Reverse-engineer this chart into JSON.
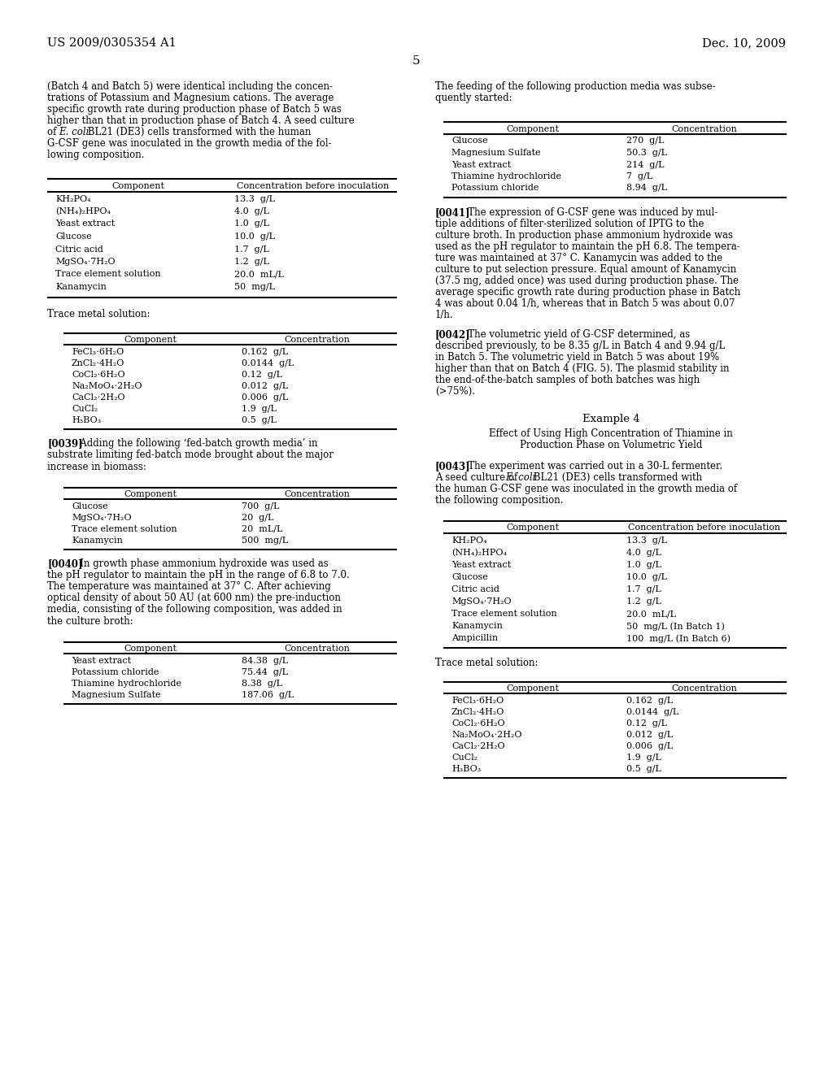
{
  "bg_color": "#ffffff",
  "header_left": "US 2009/0305354 A1",
  "header_right": "Dec. 10, 2009",
  "page_number": "5",
  "left_intro": "(Batch 4 and Batch 5) were identical including the concen-\ntrations of Potassium and Magnesium cations. The average\nspecific growth rate during production phase of Batch 5 was\nhigher than that in production phase of Batch 4. A seed culture\nof E. coli BL21 (DE3) cells transformed with the human\nG-CSF gene was inoculated in the growth media of the fol-\nlowing composition.",
  "table1": {
    "header": [
      "Component",
      "Concentration before inoculation"
    ],
    "rows": [
      [
        "KH₂PO₄",
        "13.3  g/L"
      ],
      [
        "(NH₄)₂HPO₄",
        "4.0  g/L"
      ],
      [
        "Yeast extract",
        "1.0  g/L"
      ],
      [
        "Glucose",
        "10.0  g/L"
      ],
      [
        "Citric acid",
        "1.7  g/L"
      ],
      [
        "MgSO₄⋅7H₂O",
        "1.2  g/L"
      ],
      [
        "Trace element solution",
        "20.0  mL/L"
      ],
      [
        "Kanamycin",
        "50  mg/L"
      ]
    ]
  },
  "trace_label_left": "Trace metal solution:",
  "table2": {
    "header": [
      "Component",
      "Concentration"
    ],
    "rows": [
      [
        "FeCl₃⋅6H₂O",
        "0.162  g/L"
      ],
      [
        "ZnCl₂⋅4H₂O",
        "0.0144  g/L"
      ],
      [
        "CoCl₂⋅6H₂O",
        "0.12  g/L"
      ],
      [
        "Na₂MoO₄⋅2H₂O",
        "0.012  g/L"
      ],
      [
        "CaCl₂⋅2H₂O",
        "0.006  g/L"
      ],
      [
        "CuCl₂",
        "1.9  g/L"
      ],
      [
        "H₃BO₃",
        "0.5  g/L"
      ]
    ]
  },
  "para0039": "[0039]   Adding the following ‘fed-batch growth media’ in\nsubstrate limiting fed-batch mode brought about the major\nincrease in biomass:",
  "table3": {
    "header": [
      "Component",
      "Concentration"
    ],
    "rows": [
      [
        "Glucose",
        "700  g/L"
      ],
      [
        "MgSO₄⋅7H₂O",
        "20  g/L"
      ],
      [
        "Trace element solution",
        "20  mL/L"
      ],
      [
        "Kanamycin",
        "500  mg/L"
      ]
    ]
  },
  "para0040": "[0040]   In growth phase ammonium hydroxide was used as\nthe pH regulator to maintain the pH in the range of 6.8 to 7.0.\nThe temperature was maintained at 37° C. After achieving\noptical density of about 50 AU (at 600 nm) the pre-induction\nmedia, consisting of the following composition, was added in\nthe culture broth:",
  "table4": {
    "header": [
      "Component",
      "Concentration"
    ],
    "rows": [
      [
        "Yeast extract",
        "84.38  g/L"
      ],
      [
        "Potassium chloride",
        "75.44  g/L"
      ],
      [
        "Thiamine hydrochloride",
        "8.38  g/L"
      ],
      [
        "Magnesium Sulfate",
        "187.06  g/L"
      ]
    ]
  },
  "right_intro": "The feeding of the following production media was subse-\nquently started:",
  "table_prod": {
    "header": [
      "Component",
      "Concentration"
    ],
    "rows": [
      [
        "Glucose",
        "270  g/L"
      ],
      [
        "Magnesium Sulfate",
        "50.3  g/L"
      ],
      [
        "Yeast extract",
        "214  g/L"
      ],
      [
        "Thiamine hydrochloride",
        "7  g/L"
      ],
      [
        "Potassium chloride",
        "8.94  g/L"
      ]
    ]
  },
  "para0041": "[0041]   The expression of G-CSF gene was induced by mul-\ntiple additions of filter-sterilized solution of IPTG to the\nculture broth. In production phase ammonium hydroxide was\nused as the pH regulator to maintain the pH 6.8. The tempera-\nture was maintained at 37° C. Kanamycin was added to the\nculture to put selection pressure. Equal amount of Kanamycin\n(37.5 mg, added once) was used during production phase. The\naverage specific growth rate during production phase in Batch\n4 was about 0.04 1/h, whereas that in Batch 5 was about 0.07\n1/h.",
  "para0042": "[0042]   The volumetric yield of G-CSF determined, as\ndescribed previously, to be 8.35 g/L in Batch 4 and 9.94 g/L\nin Batch 5. The volumetric yield in Batch 5 was about 19%\nhigher than that on Batch 4 (FIG. 5). The plasmid stability in\nthe end-of-the-batch samples of both batches was high\n(>75%).",
  "example4_title": "Example 4",
  "example4_subtitle": "Effect of Using High Concentration of Thiamine in\nProduction Phase on Volumetric Yield",
  "para0043": "[0043]   The experiment was carried out in a 30-L fermenter.\nA seed culture of E. coli BL21 (DE3) cells transformed with\nthe human G-CSF gene was inoculated in the growth media of\nthe following composition.",
  "table5": {
    "header": [
      "Component",
      "Concentration before inoculation"
    ],
    "rows": [
      [
        "KH₂PO₄",
        "13.3  g/L"
      ],
      [
        "(NH₄)₂HPO₄",
        "4.0  g/L"
      ],
      [
        "Yeast extract",
        "1.0  g/L"
      ],
      [
        "Glucose",
        "10.0  g/L"
      ],
      [
        "Citric acid",
        "1.7  g/L"
      ],
      [
        "MgSO₄⋅7H₂O",
        "1.2  g/L"
      ],
      [
        "Trace element solution",
        "20.0  mL/L"
      ],
      [
        "Kanamycin",
        "50  mg/L (In Batch 1)"
      ],
      [
        "Ampicillin",
        "100  mg/L (In Batch 6)"
      ]
    ]
  },
  "trace_label_right": "Trace metal solution:",
  "table6": {
    "header": [
      "Component",
      "Concentration"
    ],
    "rows": [
      [
        "FeCl₃⋅6H₂O",
        "0.162  g/L"
      ],
      [
        "ZnCl₂⋅4H₂O",
        "0.0144  g/L"
      ],
      [
        "CoCl₂⋅6H₂O",
        "0.12  g/L"
      ],
      [
        "Na₂MoO₄⋅2H₂O",
        "0.012  g/L"
      ],
      [
        "CaCl₂⋅2H₂O",
        "0.006  g/L"
      ],
      [
        "CuCl₂",
        "1.9  g/L"
      ],
      [
        "H₃BO₃",
        "0.5  g/L"
      ]
    ]
  }
}
